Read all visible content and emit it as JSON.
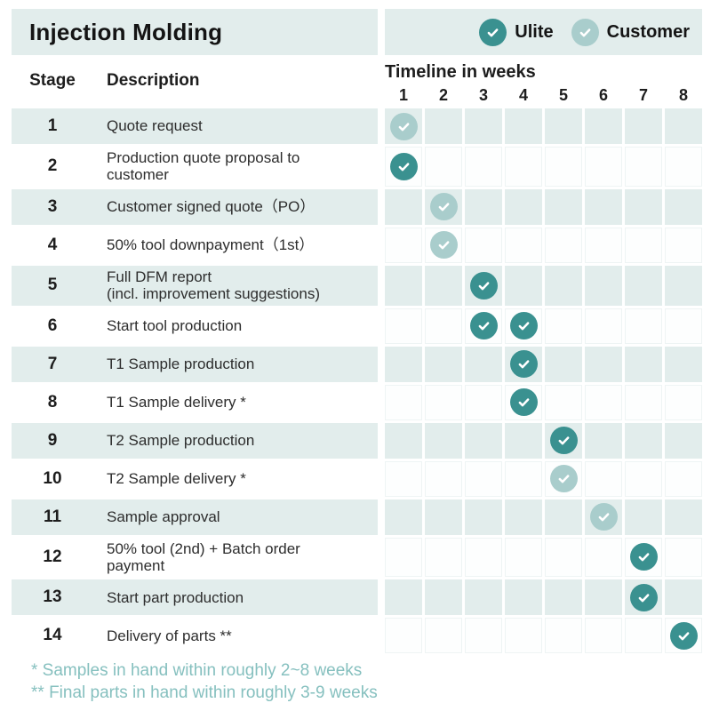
{
  "title": "Injection Molding",
  "header": {
    "stage": "Stage",
    "description": "Description",
    "timeline": "Timeline in weeks"
  },
  "footnotes": [
    "* Samples in hand within roughly 2~8 weeks",
    "** Final parts in hand within roughly 3-9 weeks"
  ],
  "colors": {
    "ulite": "#3a9190",
    "customer": "#a9cdcc",
    "row_tint": "#e2edec",
    "footnote_text": "#86c0bf"
  },
  "chart_data": {
    "type": "table",
    "title": "Injection Molding",
    "xlabel": "Timeline in weeks",
    "weeks": [
      "1",
      "2",
      "3",
      "4",
      "5",
      "6",
      "7",
      "8"
    ],
    "legend": [
      {
        "name": "ulite",
        "label": "Ulite"
      },
      {
        "name": "customer",
        "label": "Customer"
      }
    ],
    "rows": [
      {
        "stage": "1",
        "description": "Quote request",
        "checks": [
          {
            "week": 1,
            "actor": "customer"
          }
        ]
      },
      {
        "stage": "2",
        "description": "Production quote proposal to\ncustomer",
        "checks": [
          {
            "week": 1,
            "actor": "ulite"
          }
        ]
      },
      {
        "stage": "3",
        "description": "Customer signed quote（PO）",
        "checks": [
          {
            "week": 2,
            "actor": "customer"
          }
        ]
      },
      {
        "stage": "4",
        "description": "50% tool downpayment（1st）",
        "checks": [
          {
            "week": 2,
            "actor": "customer"
          }
        ]
      },
      {
        "stage": "5",
        "description": "Full DFM report\n(incl. improvement suggestions)",
        "checks": [
          {
            "week": 3,
            "actor": "ulite"
          }
        ]
      },
      {
        "stage": "6",
        "description": "Start tool production",
        "checks": [
          {
            "week": 3,
            "actor": "ulite"
          },
          {
            "week": 4,
            "actor": "ulite"
          }
        ]
      },
      {
        "stage": "7",
        "description": "T1 Sample production",
        "checks": [
          {
            "week": 4,
            "actor": "ulite"
          }
        ]
      },
      {
        "stage": "8",
        "description": "T1 Sample delivery *",
        "checks": [
          {
            "week": 4,
            "actor": "ulite"
          }
        ]
      },
      {
        "stage": "9",
        "description": "T2 Sample production",
        "checks": [
          {
            "week": 5,
            "actor": "ulite"
          }
        ]
      },
      {
        "stage": "10",
        "description": "T2 Sample delivery *",
        "checks": [
          {
            "week": 5,
            "actor": "customer"
          }
        ]
      },
      {
        "stage": "11",
        "description": "Sample approval",
        "checks": [
          {
            "week": 6,
            "actor": "customer"
          }
        ]
      },
      {
        "stage": "12",
        "description": "50% tool (2nd) + Batch order\npayment",
        "checks": [
          {
            "week": 7,
            "actor": "ulite"
          }
        ]
      },
      {
        "stage": "13",
        "description": "Start part production",
        "checks": [
          {
            "week": 7,
            "actor": "ulite"
          }
        ]
      },
      {
        "stage": "14",
        "description": "Delivery of parts **",
        "checks": [
          {
            "week": 8,
            "actor": "ulite"
          }
        ]
      }
    ]
  }
}
